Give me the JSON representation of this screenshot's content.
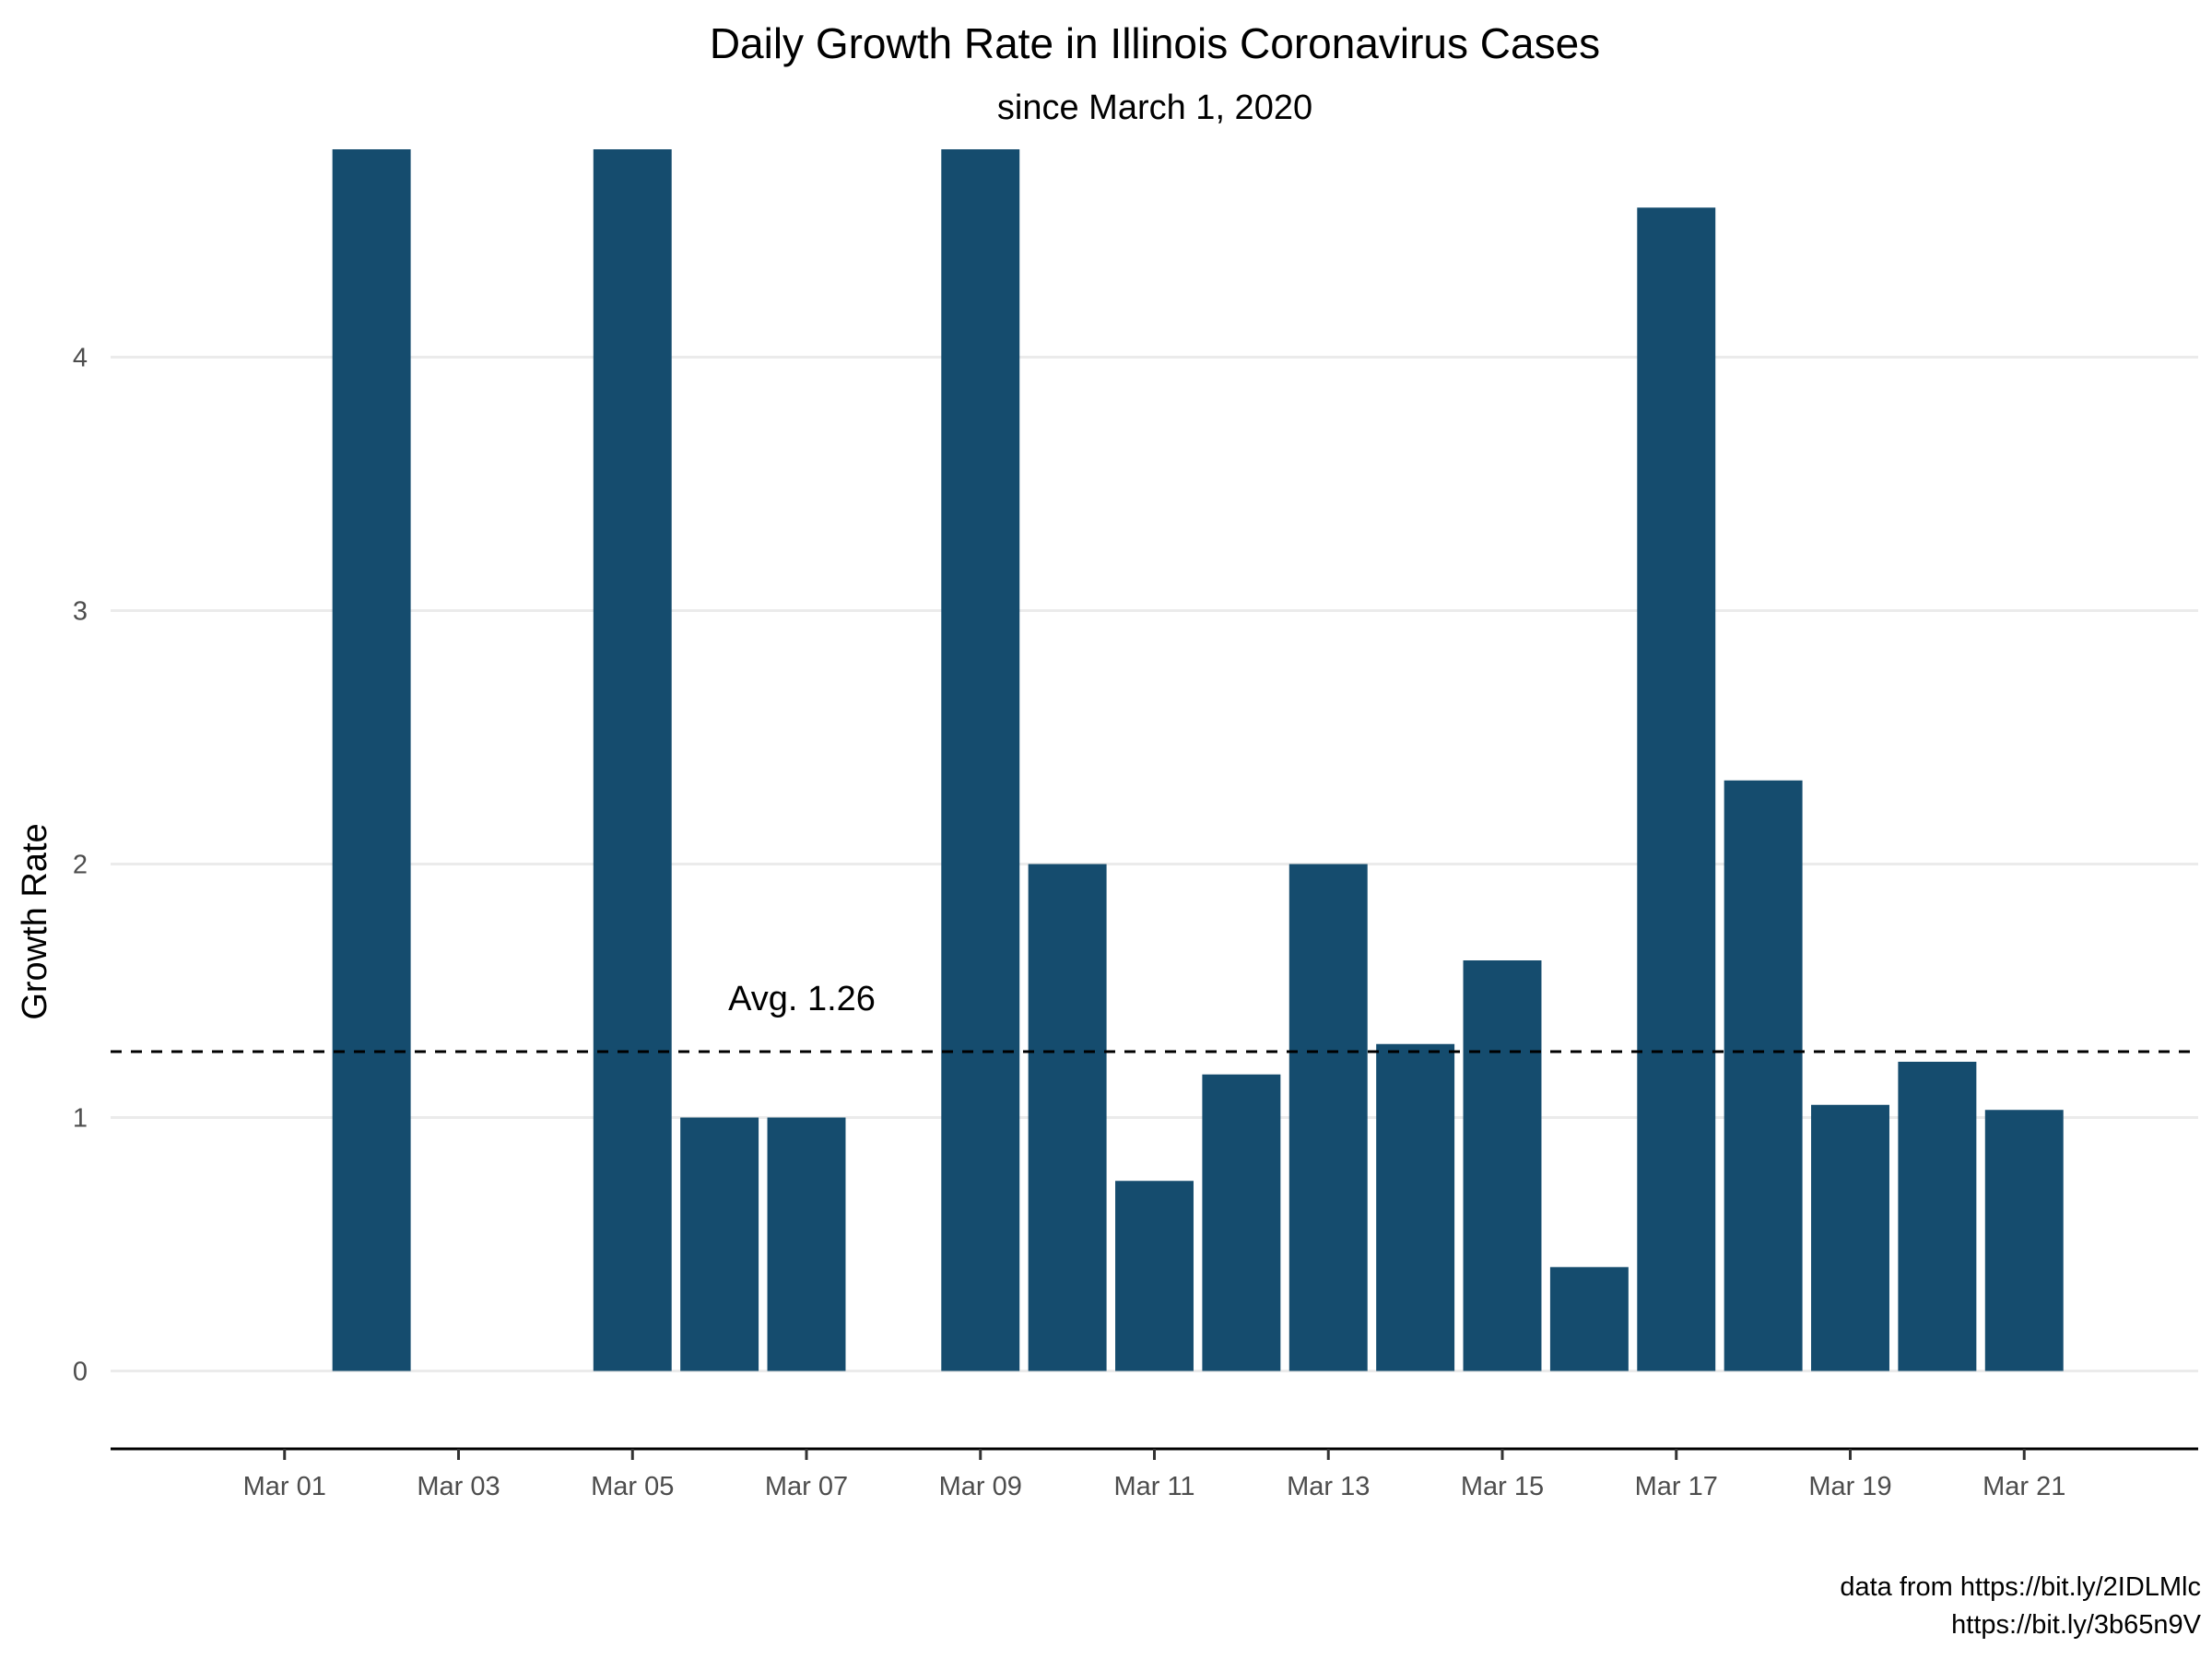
{
  "chart_data": {
    "type": "bar",
    "title": "Daily Growth Rate in Illinois Coronavirus Cases",
    "subtitle": "since March 1, 2020",
    "xlabel": "",
    "ylabel": "Growth Rate",
    "x": [
      "2020-03-01",
      "2020-03-02",
      "2020-03-03",
      "2020-03-04",
      "2020-03-05",
      "2020-03-06",
      "2020-03-07",
      "2020-03-08",
      "2020-03-09",
      "2020-03-10",
      "2020-03-11",
      "2020-03-12",
      "2020-03-13",
      "2020-03-14",
      "2020-03-15",
      "2020-03-16",
      "2020-03-17",
      "2020-03-18",
      "2020-03-19",
      "2020-03-20",
      "2020-03-21"
    ],
    "values": [
      null,
      4.82,
      null,
      null,
      4.82,
      1.0,
      1.0,
      null,
      4.82,
      2.0,
      0.75,
      1.17,
      2.0,
      1.29,
      1.62,
      0.41,
      4.59,
      2.33,
      1.05,
      1.22,
      1.03
    ],
    "xlim": [
      "2020-02-28",
      "2020-03-23"
    ],
    "ylim": [
      -0.22,
      4.82
    ],
    "xticks": [
      "Mar 01",
      "Mar 03",
      "Mar 05",
      "Mar 07",
      "Mar 09",
      "Mar 11",
      "Mar 13",
      "Mar 15",
      "Mar 17",
      "Mar 19",
      "Mar 21"
    ],
    "yticks": [
      0,
      1,
      2,
      3,
      4
    ],
    "grid": true,
    "legend": "none",
    "bar_color": "#154c6e",
    "reference_line": {
      "value": 1.26,
      "style": "dashed",
      "label": "Avg. 1.26"
    },
    "caption": [
      "data from https://bit.ly/2IDLMlc",
      "https://bit.ly/3b65n9V"
    ]
  }
}
